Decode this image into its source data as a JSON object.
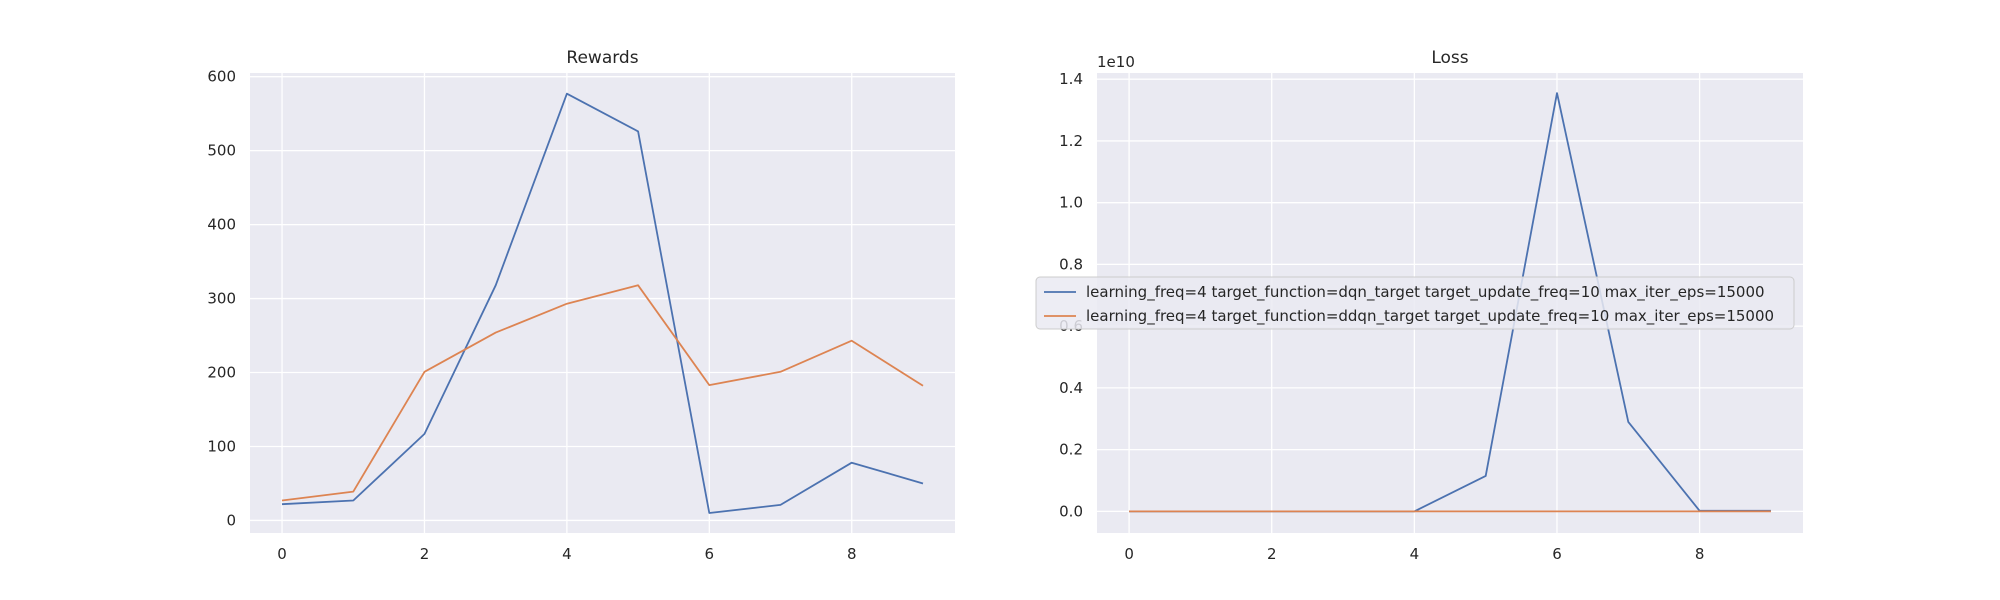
{
  "chart_data": [
    {
      "type": "line",
      "title": "Rewards",
      "xlabel": "",
      "ylabel": "",
      "x": [
        0,
        1,
        2,
        3,
        4,
        5,
        6,
        7,
        8,
        9
      ],
      "xlim": [
        -0.45,
        9.45
      ],
      "ylim": [
        -17,
        605
      ],
      "xticks": [
        0,
        2,
        4,
        6,
        8
      ],
      "xtick_labels": [
        "0",
        "2",
        "4",
        "6",
        "8"
      ],
      "yticks": [
        0,
        100,
        200,
        300,
        400,
        500,
        600
      ],
      "ytick_labels": [
        "0",
        "100",
        "200",
        "300",
        "400",
        "500",
        "600"
      ],
      "grid": true,
      "series": [
        {
          "color": "#4c72b0",
          "values": [
            22,
            27,
            117,
            318,
            577,
            526,
            10,
            21,
            78,
            50
          ]
        },
        {
          "color": "#dd8452",
          "values": [
            27,
            39,
            201,
            254,
            293,
            318,
            183,
            201,
            243,
            182
          ]
        }
      ]
    },
    {
      "type": "line",
      "title": "Loss",
      "xlabel": "",
      "ylabel": "",
      "y_offset_label": "1e10",
      "x": [
        0,
        1,
        2,
        3,
        4,
        5,
        6,
        7,
        8,
        9
      ],
      "xlim": [
        -0.45,
        9.45
      ],
      "ylim": [
        -0.07,
        1.42
      ],
      "xticks": [
        0,
        2,
        4,
        6,
        8
      ],
      "xtick_labels": [
        "0",
        "2",
        "4",
        "6",
        "8"
      ],
      "yticks": [
        0.0,
        0.2,
        0.4,
        0.6,
        0.8,
        1.0,
        1.2,
        1.4
      ],
      "ytick_labels": [
        "0.0",
        "0.2",
        "0.4",
        "0.6",
        "0.8",
        "1.0",
        "1.2",
        "1.4"
      ],
      "grid": true,
      "legend_position": "center",
      "series": [
        {
          "name": "learning_freq=4 target_function=dqn_target target_update_freq=10 max_iter_eps=15000",
          "color": "#4c72b0",
          "values": [
            0,
            0,
            0,
            0,
            0.0,
            0.115,
            1.355,
            0.29,
            0.002,
            0.002
          ]
        },
        {
          "name": "learning_freq=4 target_function=ddqn_target target_update_freq=10 max_iter_eps=15000",
          "color": "#dd8452",
          "values": [
            0,
            0,
            0,
            0,
            0,
            0,
            0,
            0,
            0,
            0
          ]
        }
      ]
    }
  ]
}
